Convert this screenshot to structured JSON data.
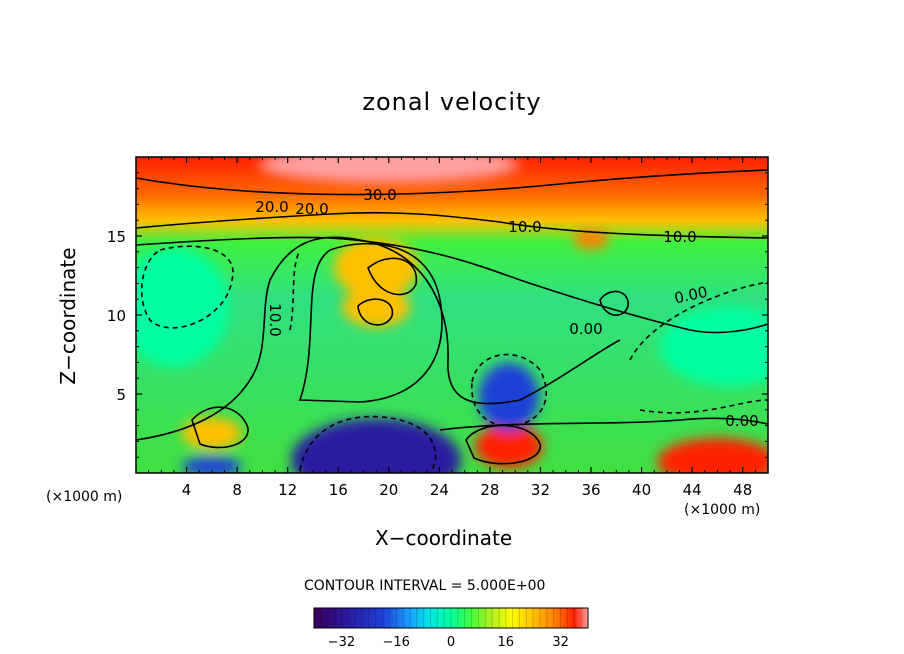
{
  "chart_data": {
    "type": "heatmap",
    "title": "zonal velocity",
    "xlabel": "X−coordinate",
    "ylabel": "Z−coordinate",
    "x_unit_label": "(×1000 m)",
    "x_unit_label_right": "(×1000 m)",
    "contour_interval_text": "CONTOUR INTERVAL = 5.000E+00",
    "xlim": [
      0,
      50
    ],
    "ylim": [
      0,
      20
    ],
    "x_ticks": [
      "4",
      "8",
      "12",
      "16",
      "20",
      "24",
      "28",
      "32",
      "36",
      "40",
      "44",
      "48"
    ],
    "y_ticks": [
      "5",
      "10",
      "15"
    ],
    "colorbar": {
      "range": [
        -40,
        40
      ],
      "ticks": [
        "−32",
        "−16",
        "0",
        "16",
        "32"
      ]
    },
    "contour_labels": [
      "30.0",
      "20.0",
      "10.0",
      "20.0",
      "10.0",
      "0.00",
      "0.00",
      "10.0",
      "0.00"
    ],
    "features": [
      {
        "x": 20,
        "z": 19.5,
        "value": 40
      },
      {
        "x": 6,
        "z": 2.5,
        "value": 22
      },
      {
        "x": 19,
        "z": 13,
        "value": 22
      },
      {
        "x": 19,
        "z": 10.5,
        "value": 20
      },
      {
        "x": 29.5,
        "z": 1.7,
        "value": 30
      },
      {
        "x": 46,
        "z": 0.7,
        "value": 30
      },
      {
        "x": 36,
        "z": 14.8,
        "value": 28
      },
      {
        "x": 19,
        "z": 0.8,
        "value": -36
      },
      {
        "x": 29.5,
        "z": 4.8,
        "value": -30
      },
      {
        "x": 3,
        "z": 10.5,
        "value": -8
      },
      {
        "x": 47,
        "z": 8,
        "value": -10
      },
      {
        "x": 6,
        "z": 0.4,
        "value": -25
      }
    ]
  },
  "colors": {
    "scale": [
      "#3a005a",
      "#2a1aa0",
      "#1f3fd8",
      "#1aa0ff",
      "#00e6e6",
      "#00ffa0",
      "#40ff40",
      "#b4f020",
      "#ffff00",
      "#ffc000",
      "#ff8000",
      "#ff2000",
      "#ffa0a0"
    ]
  }
}
